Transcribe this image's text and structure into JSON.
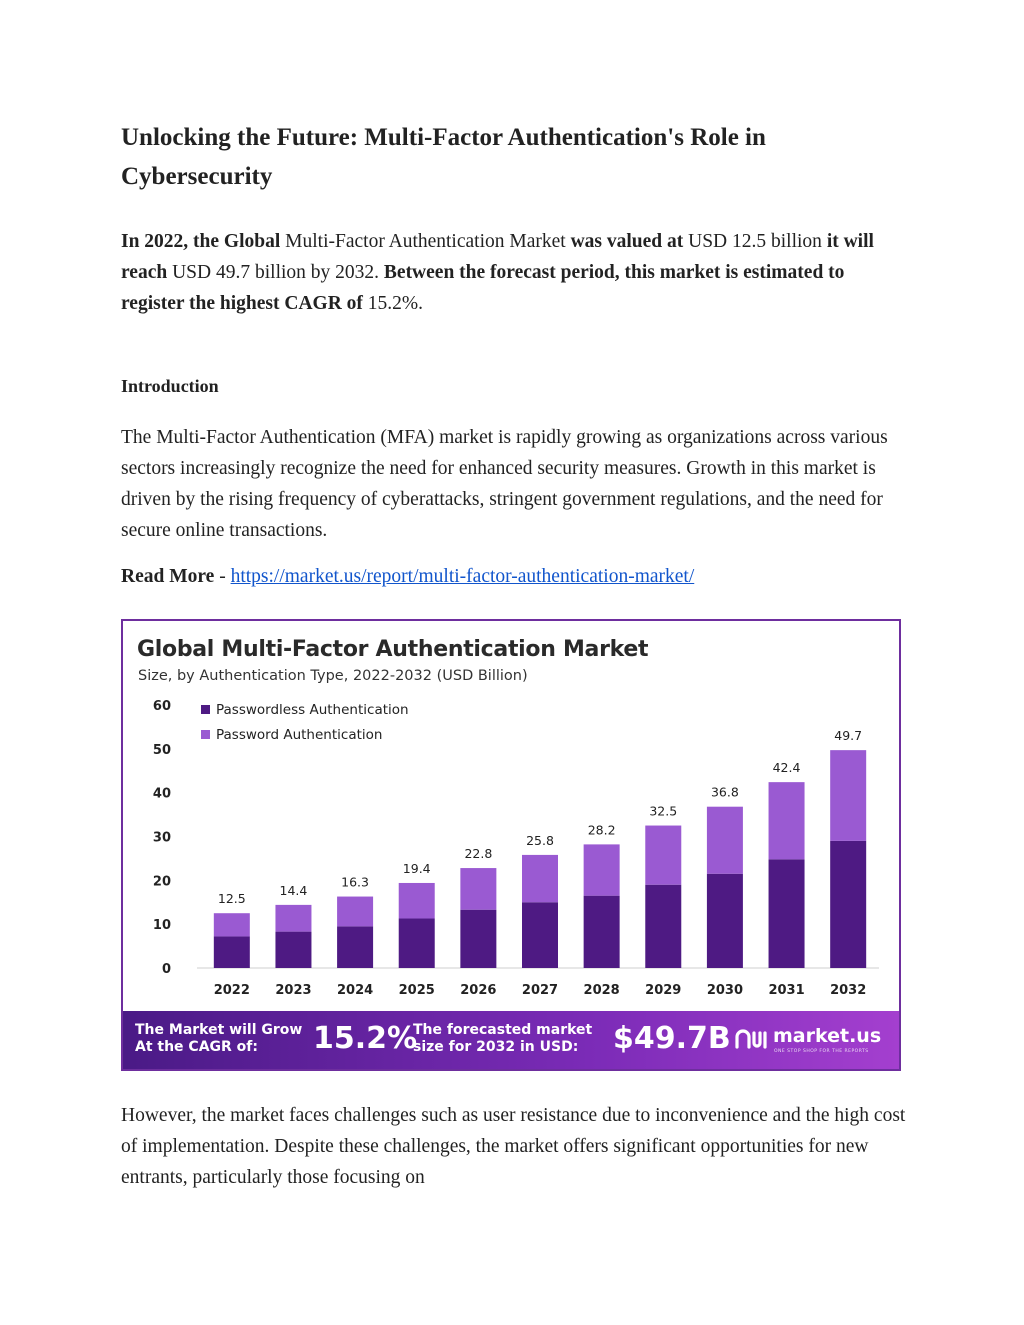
{
  "article": {
    "title": "Unlocking the Future: Multi-Factor Authentication's Role in Cybersecurity",
    "lead": {
      "s1": "In 2022, the Global",
      "s2": " Multi-Factor Authentication Market ",
      "s3": "was valued at",
      "s4": " USD 12.5 billion ",
      "s5": "it will reach",
      "s6": " USD 49.7 billion by 2032. ",
      "s7": "Between the forecast period, this market is estimated to register the highest CAGR of",
      "s8": " 15.2%."
    },
    "intro_heading": "Introduction",
    "intro_paragraph": "The Multi-Factor Authentication (MFA) market is rapidly growing as organizations across various sectors increasingly recognize the need for enhanced security measures. Growth in this market is driven by the rising frequency of cyberattacks, stringent government regulations, and the need for secure online transactions.",
    "read_more_label": "Read More",
    "read_more_sep": " - ",
    "read_more_link": "https://market.us/report/multi-factor-authentication-market/",
    "closing_paragraph": "However, the market faces challenges such as user resistance due to inconvenience and the high cost of implementation. Despite these challenges, the market offers significant opportunities for new entrants, particularly those focusing on"
  },
  "infographic": {
    "title": "Global Multi-Factor Authentication Market",
    "subtitle": "Size, by Authentication Type, 2022-2032 (USD Billion)",
    "banner": {
      "cagr_label_1": "The Market will Grow",
      "cagr_label_2": "At the CAGR of:",
      "cagr_value": "15.2%",
      "size_label_1": "The forecasted market",
      "size_label_2": "size for 2032 in USD:",
      "size_value": "$49.7B",
      "logo_name": "market.us",
      "logo_tagline": "ONE STOP SHOP FOR THE REPORTS"
    }
  },
  "colors": {
    "passwordless": "#4e1a83",
    "password": "#9a5ad2",
    "link": "#1155cc",
    "frame": "#6e2e9e"
  },
  "chart_data": {
    "type": "bar",
    "stacked": true,
    "title": "Global Multi-Factor Authentication Market",
    "subtitle": "Size, by Authentication Type, 2022-2032 (USD Billion)",
    "categories": [
      "2022",
      "2023",
      "2024",
      "2025",
      "2026",
      "2027",
      "2028",
      "2029",
      "2030",
      "2031",
      "2032"
    ],
    "totals": [
      12.5,
      14.4,
      16.3,
      19.4,
      22.8,
      25.8,
      28.2,
      32.5,
      36.8,
      42.4,
      49.7
    ],
    "total_labels": [
      "12.5",
      "14.4",
      "16.3",
      "19.4",
      "22.8",
      "25.8",
      "28.2",
      "32.5",
      "36.8",
      "42.4",
      "49.7"
    ],
    "series": [
      {
        "name": "Passwordless Authentication",
        "values": [
          7.2,
          8.3,
          9.5,
          11.3,
          13.3,
          15.0,
          16.5,
          19.0,
          21.5,
          24.8,
          29.0
        ]
      },
      {
        "name": "Password Authentication",
        "values": [
          5.3,
          6.1,
          6.8,
          8.1,
          9.5,
          10.8,
          11.7,
          13.5,
          15.3,
          17.6,
          20.7
        ]
      }
    ],
    "ylim": [
      0,
      60
    ],
    "yticks": [
      0,
      10,
      20,
      30,
      40,
      50,
      60
    ],
    "legend_position": "top-left",
    "grid": false
  }
}
